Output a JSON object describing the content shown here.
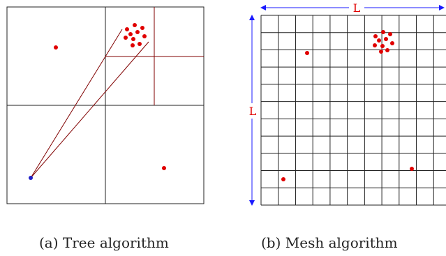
{
  "colors": {
    "frame": "#222222",
    "tree_split": "#800000",
    "particle": "#e00000",
    "source": "#2020c8",
    "dimension": "#1a1aff",
    "dimension_label": "#e00000"
  },
  "panel_a": {
    "caption": "(a) Tree algorithm"
  },
  "panel_b": {
    "caption": "(b) Mesh algorithm",
    "width_label": "L",
    "height_label": "L",
    "grid_cells": 11
  }
}
